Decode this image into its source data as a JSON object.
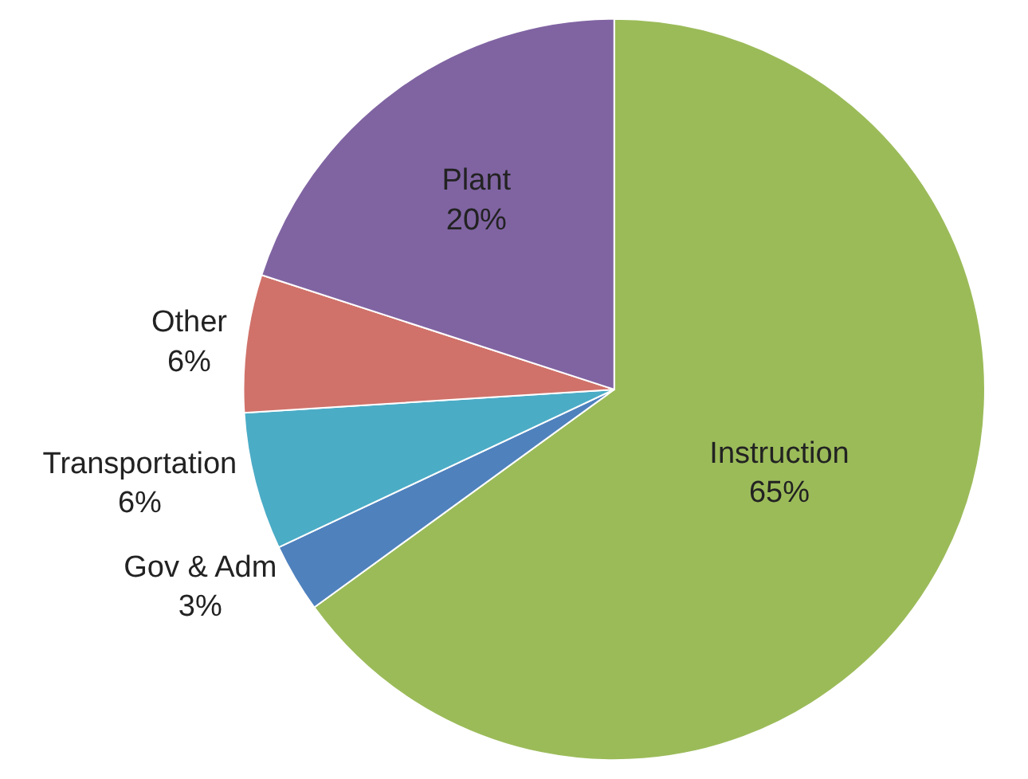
{
  "chart_data": {
    "type": "pie",
    "categories": [
      "Instruction",
      "Gov & Adm",
      "Transportation",
      "Other",
      "Plant"
    ],
    "values": [
      65,
      3,
      6,
      6,
      20
    ],
    "value_labels": [
      "65%",
      "3%",
      "6%",
      "6%",
      "20%"
    ],
    "colors": [
      "#9bbb59",
      "#4f81bd",
      "#4bacc6",
      "#d0726a",
      "#8064a2"
    ],
    "legend": false
  }
}
